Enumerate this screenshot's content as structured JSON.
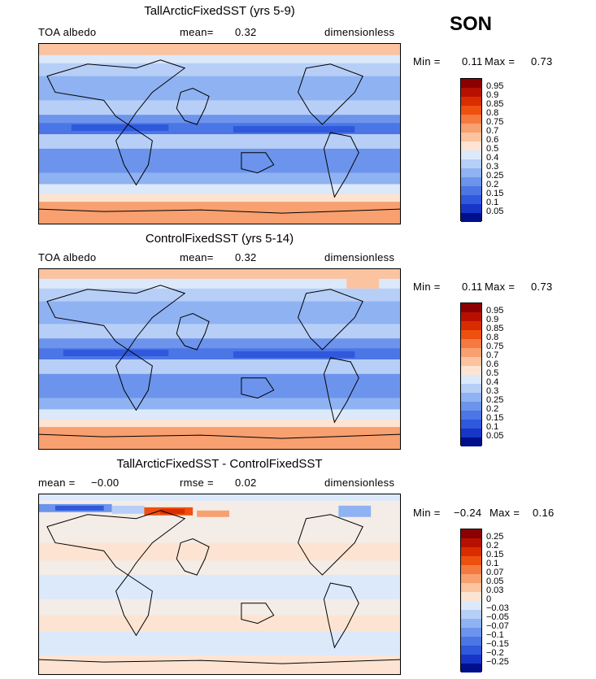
{
  "season": "SON",
  "panels": [
    {
      "title": "TallArcticFixedSST (yrs 5-9)",
      "left_label": "TOA albedo",
      "center_label": "mean=",
      "center_value": "0.32",
      "right_label": "dimensionless",
      "min_label": "Min =",
      "min_value": "0.11",
      "max_label": "Max =",
      "max_value": "0.73",
      "colorbar_labels": [
        "0.95",
        "0.9",
        "0.85",
        "0.8",
        "0.75",
        "0.7",
        "0.6",
        "0.5",
        "0.4",
        "0.3",
        "0.25",
        "0.2",
        "0.15",
        "0.1",
        "0.05"
      ],
      "colors": [
        "#8b0000",
        "#b81000",
        "#d92d00",
        "#ee5010",
        "#f57a40",
        "#f8a070",
        "#fbc3a0",
        "#fde4d2",
        "#dce9fb",
        "#b7cff7",
        "#8fb2f2",
        "#6c94ec",
        "#4c76e6",
        "#2f58dc",
        "#1736c8",
        "#000f8c"
      ]
    },
    {
      "title": "ControlFixedSST (yrs 5-14)",
      "left_label": "TOA albedo",
      "center_label": "mean=",
      "center_value": "0.32",
      "right_label": "dimensionless",
      "min_label": "Min =",
      "min_value": "0.11",
      "max_label": "Max =",
      "max_value": "0.73",
      "colorbar_labels": [
        "0.95",
        "0.9",
        "0.85",
        "0.8",
        "0.75",
        "0.7",
        "0.6",
        "0.5",
        "0.4",
        "0.3",
        "0.25",
        "0.2",
        "0.15",
        "0.1",
        "0.05"
      ],
      "colors": [
        "#8b0000",
        "#b81000",
        "#d92d00",
        "#ee5010",
        "#f57a40",
        "#f8a070",
        "#fbc3a0",
        "#fde4d2",
        "#dce9fb",
        "#b7cff7",
        "#8fb2f2",
        "#6c94ec",
        "#4c76e6",
        "#2f58dc",
        "#1736c8",
        "#000f8c"
      ]
    },
    {
      "title": "TallArcticFixedSST - ControlFixedSST",
      "left_label": "mean =",
      "left_value": "−0.00",
      "center_label": "rmse =",
      "center_value": "0.02",
      "right_label": "dimensionless",
      "min_label": "Min =",
      "min_value": "−0.24",
      "max_label": "Max =",
      "max_value": "0.16",
      "colorbar_labels": [
        "0.25",
        "0.2",
        "0.15",
        "0.1",
        "0.07",
        "0.05",
        "0.03",
        "0",
        "−0.03",
        "−0.05",
        "−0.07",
        "−0.1",
        "−0.15",
        "−0.2",
        "−0.25"
      ],
      "colors": [
        "#8b0000",
        "#b81000",
        "#d92d00",
        "#ee5010",
        "#f57a40",
        "#f8a070",
        "#fbc3a0",
        "#fde4d2",
        "#dce9fb",
        "#b7cff7",
        "#8fb2f2",
        "#6c94ec",
        "#4c76e6",
        "#2f58dc",
        "#1736c8",
        "#000f8c"
      ]
    }
  ],
  "chart_data": [
    {
      "type": "heatmap",
      "title": "TallArcticFixedSST (yrs 5-9)",
      "variable": "TOA albedo",
      "units": "dimensionless",
      "mean": 0.32,
      "min": 0.11,
      "max": 0.73,
      "levels": [
        0.05,
        0.1,
        0.15,
        0.2,
        0.25,
        0.3,
        0.4,
        0.5,
        0.6,
        0.7,
        0.75,
        0.8,
        0.85,
        0.9,
        0.95
      ]
    },
    {
      "type": "heatmap",
      "title": "ControlFixedSST (yrs 5-14)",
      "variable": "TOA albedo",
      "units": "dimensionless",
      "mean": 0.32,
      "min": 0.11,
      "max": 0.73,
      "levels": [
        0.05,
        0.1,
        0.15,
        0.2,
        0.25,
        0.3,
        0.4,
        0.5,
        0.6,
        0.7,
        0.75,
        0.8,
        0.85,
        0.9,
        0.95
      ]
    },
    {
      "type": "heatmap",
      "title": "TallArcticFixedSST - ControlFixedSST",
      "units": "dimensionless",
      "mean": -0.0,
      "rmse": 0.02,
      "min": -0.24,
      "max": 0.16,
      "levels": [
        -0.25,
        -0.2,
        -0.15,
        -0.1,
        -0.07,
        -0.05,
        -0.03,
        0,
        0.03,
        0.05,
        0.07,
        0.1,
        0.15,
        0.2,
        0.25
      ]
    }
  ]
}
